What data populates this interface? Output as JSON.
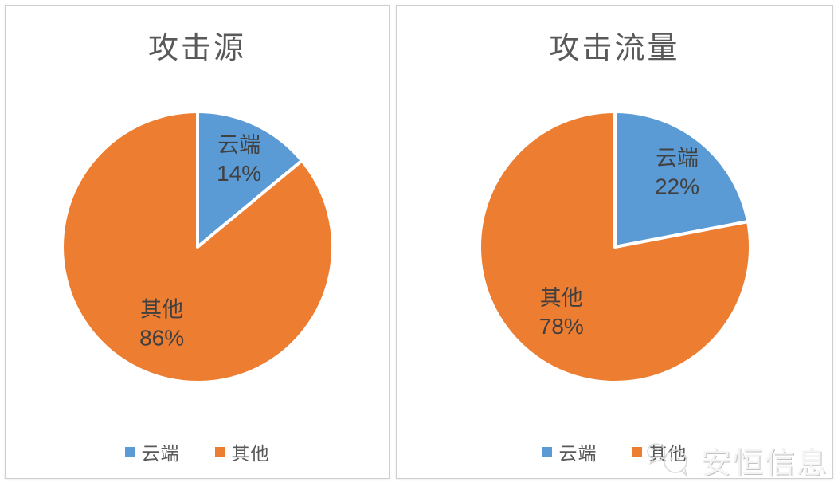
{
  "theme": {
    "cloud_color": "#5B9BD5",
    "other_color": "#ED7D31",
    "title_color": "#595959",
    "label_color": "#404040",
    "legend_text_color": "#595959",
    "panel_border_color": "#cfcfcf",
    "slice_gap_color": "#ffffff"
  },
  "watermark": {
    "text": "安恒信息",
    "icon": "chat-bubbles-icon"
  },
  "chart_data": [
    {
      "type": "pie",
      "title": "攻击源",
      "categories": [
        "云端",
        "其他"
      ],
      "values": [
        14,
        86
      ],
      "labels": [
        "14%",
        "86%"
      ],
      "slice_colors": [
        "#5B9BD5",
        "#ED7D31"
      ],
      "legend": [
        {
          "label": "云端",
          "color": "#5B9BD5"
        },
        {
          "label": "其他",
          "color": "#ED7D31"
        }
      ],
      "legend_position": "bottom",
      "start_angle": "top",
      "direction": "clockwise"
    },
    {
      "type": "pie",
      "title": "攻击流量",
      "categories": [
        "云端",
        "其他"
      ],
      "values": [
        22,
        78
      ],
      "labels": [
        "22%",
        "78%"
      ],
      "slice_colors": [
        "#5B9BD5",
        "#ED7D31"
      ],
      "legend": [
        {
          "label": "云端",
          "color": "#5B9BD5"
        },
        {
          "label": "其他",
          "color": "#ED7D31"
        }
      ],
      "legend_position": "bottom",
      "start_angle": "top",
      "direction": "clockwise"
    }
  ]
}
